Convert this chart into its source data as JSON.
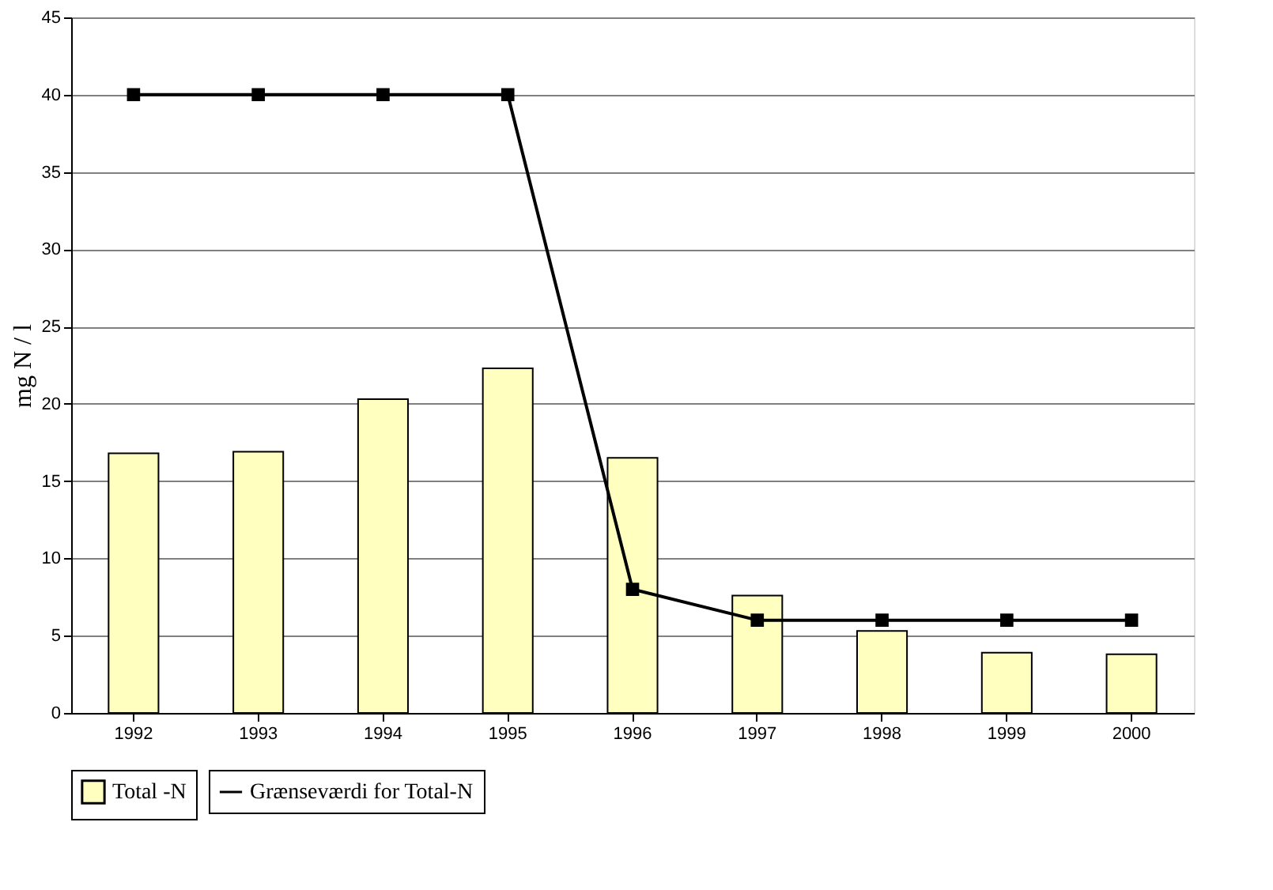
{
  "chart_data": {
    "type": "bar",
    "ylabel": "mg N / l",
    "categories": [
      "1992",
      "1993",
      "1994",
      "1995",
      "1996",
      "1997",
      "1998",
      "1999",
      "2000"
    ],
    "series": [
      {
        "name": "Total -N",
        "color": "#ffffc0",
        "values": [
          16.8,
          16.9,
          20.3,
          22.3,
          16.5,
          7.6,
          5.3,
          3.9,
          3.8
        ]
      },
      {
        "name": "Grænseværdi for Total-N",
        "type": "line",
        "color": "#000000",
        "marker": "square",
        "line_style": "solid",
        "values": [
          40,
          40,
          40,
          40,
          8,
          6,
          6,
          6,
          6
        ]
      }
    ],
    "ylim": [
      0,
      45
    ],
    "yticks": [
      0,
      5,
      10,
      15,
      20,
      25,
      30,
      35,
      40,
      45
    ],
    "grid": "y",
    "legend": "bottom"
  }
}
